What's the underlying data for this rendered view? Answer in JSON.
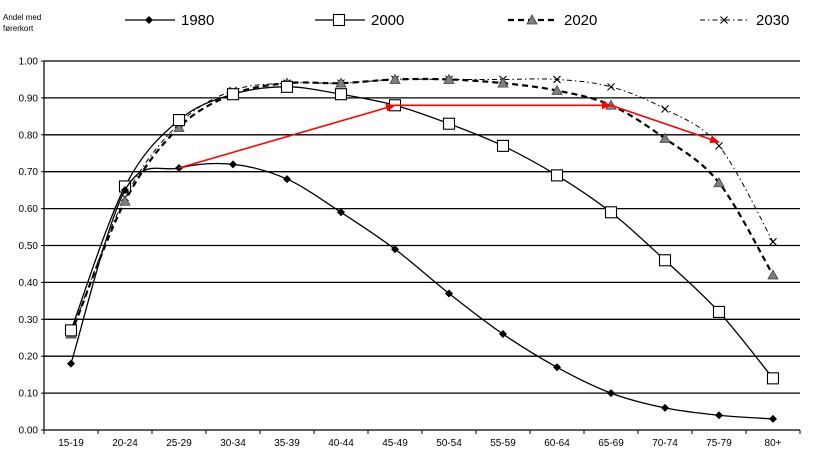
{
  "chart_data": {
    "type": "line",
    "ylabel": [
      "Andel med",
      "førerkort"
    ],
    "xlabel": "",
    "categories": [
      "15-19",
      "20-24",
      "25-29",
      "30-34",
      "35-39",
      "40-44",
      "45-49",
      "50-54",
      "55-59",
      "60-64",
      "65-69",
      "70-74",
      "75-79",
      "80+"
    ],
    "ylim": [
      0,
      1
    ],
    "yticks": [
      "0.00",
      "0.10",
      "0.20",
      "0.30",
      "0.40",
      "0.50",
      "0.60",
      "0.70",
      "0.80",
      "0.90",
      "1.00"
    ],
    "grid": true,
    "legend_position": "top",
    "series": [
      {
        "name": "1980",
        "marker": "diamond",
        "line": "solid",
        "color": "#000000",
        "values": [
          0.18,
          0.65,
          0.71,
          0.72,
          0.68,
          0.59,
          0.49,
          0.37,
          0.26,
          0.17,
          0.1,
          0.06,
          0.04,
          0.03
        ]
      },
      {
        "name": "2000",
        "marker": "square-open",
        "line": "solid",
        "color": "#000000",
        "values": [
          0.27,
          0.66,
          0.84,
          0.91,
          0.93,
          0.91,
          0.88,
          0.83,
          0.77,
          0.69,
          0.59,
          0.46,
          0.32,
          0.14
        ]
      },
      {
        "name": "2020",
        "marker": "triangle",
        "line": "dashed",
        "color": "#000000",
        "values": [
          0.26,
          0.62,
          0.82,
          0.91,
          0.94,
          0.94,
          0.95,
          0.95,
          0.94,
          0.92,
          0.88,
          0.79,
          0.67,
          0.42
        ]
      },
      {
        "name": "2030",
        "marker": "x",
        "line": "dotdash",
        "color": "#000000",
        "values": [
          0.26,
          0.63,
          0.83,
          0.92,
          0.94,
          0.94,
          0.95,
          0.95,
          0.95,
          0.95,
          0.93,
          0.87,
          0.77,
          0.51
        ]
      }
    ],
    "annotations": {
      "arrow_color": "#ff0000",
      "arrows": [
        {
          "from": [
            "25-29",
            0.71
          ],
          "to": [
            "45-49",
            0.88
          ]
        },
        {
          "from": [
            "45-49",
            0.88
          ],
          "to": [
            "65-69",
            0.88
          ]
        },
        {
          "from": [
            "65-69",
            0.88
          ],
          "to": [
            "75-79",
            0.78
          ]
        }
      ]
    }
  }
}
